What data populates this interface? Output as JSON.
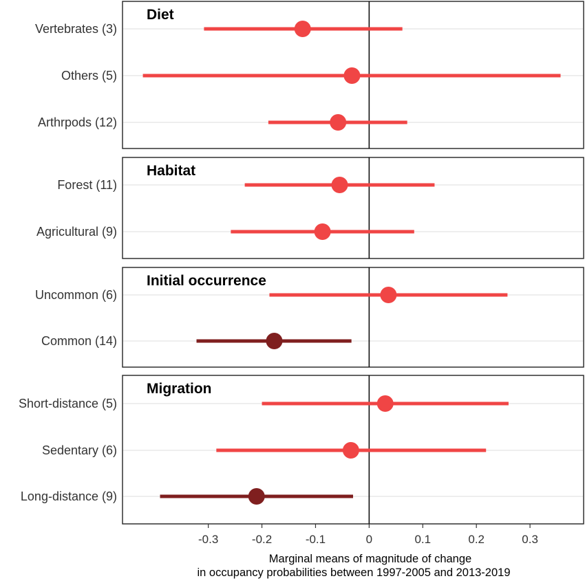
{
  "chart_data": {
    "type": "forest",
    "xlabel": [
      "Marginal means of magnitude of change",
      "in occupancy probabilities between 1997-2005 and 2013-2019"
    ],
    "xlim": [
      -0.46,
      0.4
    ],
    "xticks": [
      -0.3,
      -0.2,
      -0.1,
      0,
      0.1,
      0.2,
      0.3
    ],
    "xtick_labels": [
      "-0.3",
      "-0.2",
      "-0.1",
      "0",
      "0.1",
      "0.2",
      "0.3"
    ],
    "reference_line": 0,
    "colors": {
      "non_significant": "#f04545",
      "significant": "#7f1f1f"
    },
    "panels": [
      {
        "title": "Diet",
        "rows": [
          {
            "label": "Vertebrates (3)",
            "estimate": -0.124,
            "lower": -0.308,
            "upper": 0.062,
            "significant": false
          },
          {
            "label": "Others (5)",
            "estimate": -0.032,
            "lower": -0.422,
            "upper": 0.357,
            "significant": false
          },
          {
            "label": "Arthrpods (12)",
            "estimate": -0.058,
            "lower": -0.188,
            "upper": 0.071,
            "significant": false
          }
        ]
      },
      {
        "title": "Habitat",
        "rows": [
          {
            "label": "Forest (11)",
            "estimate": -0.055,
            "lower": -0.232,
            "upper": 0.122,
            "significant": false
          },
          {
            "label": "Agricultural (9)",
            "estimate": -0.087,
            "lower": -0.258,
            "upper": 0.084,
            "significant": false
          }
        ]
      },
      {
        "title": "Initial occurrence",
        "rows": [
          {
            "label": "Uncommon (6)",
            "estimate": 0.036,
            "lower": -0.186,
            "upper": 0.258,
            "significant": false
          },
          {
            "label": "Common (14)",
            "estimate": -0.177,
            "lower": -0.322,
            "upper": -0.033,
            "significant": true
          }
        ]
      },
      {
        "title": "Migration",
        "rows": [
          {
            "label": "Short-distance (5)",
            "estimate": 0.03,
            "lower": -0.2,
            "upper": 0.26,
            "significant": false
          },
          {
            "label": "Sedentary (6)",
            "estimate": -0.034,
            "lower": -0.285,
            "upper": 0.218,
            "significant": false
          },
          {
            "label": "Long-distance (9)",
            "estimate": -0.21,
            "lower": -0.39,
            "upper": -0.03,
            "significant": true
          }
        ]
      }
    ]
  }
}
